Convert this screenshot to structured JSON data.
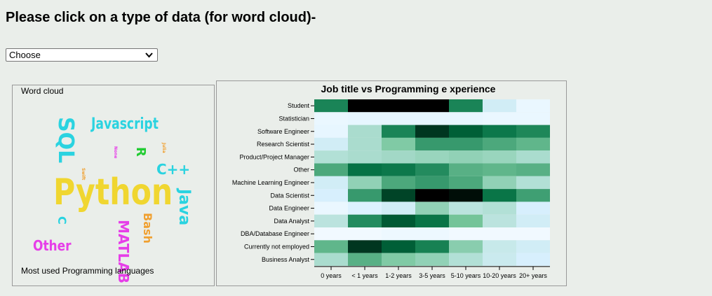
{
  "page": {
    "heading": "Please click on a type of data (for word cloud)-",
    "select": {
      "value": "Choose"
    }
  },
  "wordcloud": {
    "title": "Word cloud",
    "caption": "Most used Programming languages",
    "words": [
      {
        "text": "Python",
        "color": "#f0d630"
      },
      {
        "text": "Javascript",
        "color": "#2ad3e0"
      },
      {
        "text": "SQL",
        "color": "#2ad3e0"
      },
      {
        "text": "Java",
        "color": "#2ad3e0"
      },
      {
        "text": "C++",
        "color": "#2ad3e0"
      },
      {
        "text": "R",
        "color": "#22cc33"
      },
      {
        "text": "MATLAB",
        "color": "#e63ee8"
      },
      {
        "text": "Other",
        "color": "#e63ee8"
      },
      {
        "text": "Bash",
        "color": "#f0a030"
      },
      {
        "text": "C",
        "color": "#2ad3e0"
      },
      {
        "text": "None",
        "color": "#e63ee8"
      },
      {
        "text": "Julia",
        "color": "#f0a030"
      },
      {
        "text": "Swift",
        "color": "#f0a030"
      }
    ]
  },
  "chart_data": {
    "type": "heatmap",
    "title": "Job title vs Programming e xperience",
    "y_categories": [
      "Student",
      "Statistician",
      "Software Engineer",
      "Research Scientist",
      "Product/Project Manager",
      "Other",
      "Machine Learning Engineer",
      "Data Scientist",
      "Data Engineer",
      "Data Analyst",
      "DBA/Database Engineer",
      "Currently not employed",
      "Business Analyst"
    ],
    "x_categories": [
      "0 years",
      "< 1 years",
      "1-2 years",
      "3-5 years",
      "5-10 years",
      "10-20 years",
      "20+ years"
    ],
    "color_scale": [
      "#ffffff",
      "#00441b",
      "#000000"
    ],
    "intensity": [
      [
        0.6,
        1.0,
        1.0,
        1.0,
        0.6,
        0.12,
        0.04
      ],
      [
        0.04,
        0.05,
        0.05,
        0.05,
        0.05,
        0.04,
        0.04
      ],
      [
        0.05,
        0.22,
        0.6,
        0.92,
        0.8,
        0.68,
        0.58
      ],
      [
        0.12,
        0.22,
        0.32,
        0.5,
        0.5,
        0.45,
        0.4
      ],
      [
        0.2,
        0.22,
        0.24,
        0.26,
        0.28,
        0.26,
        0.22
      ],
      [
        0.45,
        0.72,
        0.68,
        0.55,
        0.42,
        0.4,
        0.42
      ],
      [
        0.12,
        0.28,
        0.45,
        0.5,
        0.45,
        0.28,
        0.2
      ],
      [
        0.1,
        0.5,
        0.9,
        1.0,
        0.98,
        0.7,
        0.48
      ],
      [
        0.04,
        0.08,
        0.12,
        0.28,
        0.18,
        0.2,
        0.1
      ],
      [
        0.18,
        0.55,
        0.82,
        0.7,
        0.35,
        0.18,
        0.12
      ],
      [
        0.02,
        0.02,
        0.03,
        0.03,
        0.02,
        0.02,
        0.02
      ],
      [
        0.4,
        0.92,
        0.8,
        0.62,
        0.3,
        0.15,
        0.12
      ],
      [
        0.22,
        0.42,
        0.32,
        0.28,
        0.2,
        0.14,
        0.1
      ]
    ]
  }
}
